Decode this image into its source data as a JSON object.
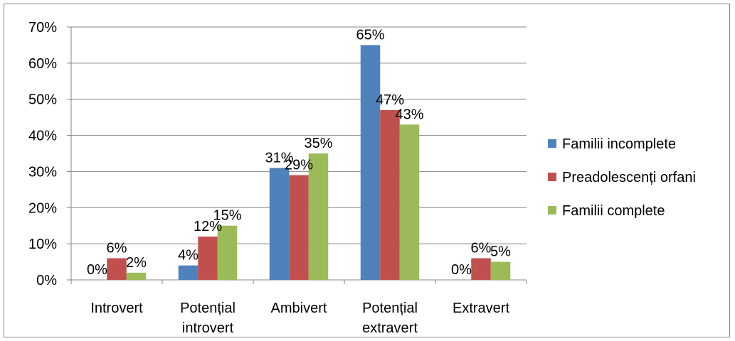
{
  "chart_data": {
    "type": "bar",
    "categories": [
      [
        "Introvert"
      ],
      [
        "Potențial",
        "introvert"
      ],
      [
        "Ambivert"
      ],
      [
        "Potențial",
        "extravert"
      ],
      [
        "Extravert"
      ]
    ],
    "series": [
      {
        "name": "Familii incomplete",
        "color": "#4F81BD",
        "values": [
          0,
          4,
          31,
          65,
          0
        ]
      },
      {
        "name": "Preadolescenți orfani",
        "color": "#C0504D",
        "values": [
          6,
          12,
          29,
          47,
          6
        ]
      },
      {
        "name": "Familii complete",
        "color": "#9BBB59",
        "values": [
          2,
          15,
          35,
          43,
          5
        ]
      }
    ],
    "value_unit": "%",
    "ylim": [
      0,
      70
    ],
    "yticks": [
      0,
      10,
      20,
      30,
      40,
      50,
      60,
      70
    ],
    "grid": true,
    "legend_position": "right"
  }
}
